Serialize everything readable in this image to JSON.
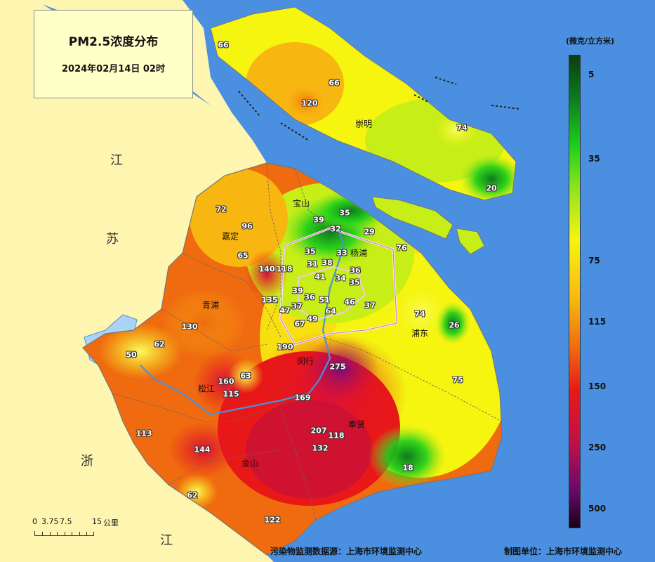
{
  "title": "PM2.5浓度分布",
  "subtitle": "2024年02月14日 02时",
  "legend": {
    "unit": "(微克/立方米)",
    "ticks": [
      "5",
      "35",
      "75",
      "115",
      "150",
      "250",
      "500"
    ]
  },
  "provinces": {
    "jiangsu_1": "江",
    "jiangsu_2": "苏",
    "zhejiang_1": "浙",
    "zhejiang_2": "江"
  },
  "districts": [
    "崇明",
    "宝山",
    "嘉定",
    "杨浦",
    "青浦",
    "浦东",
    "闵行",
    "松江",
    "奉贤",
    "金山"
  ],
  "stations": [
    "66",
    "66",
    "120",
    "74",
    "20",
    "72",
    "96",
    "65",
    "140",
    "118",
    "39",
    "35",
    "32",
    "29",
    "76",
    "35",
    "33",
    "31",
    "38",
    "41",
    "36",
    "34",
    "35",
    "39",
    "36",
    "51",
    "46",
    "37",
    "135",
    "47",
    "37",
    "64",
    "67",
    "49",
    "74",
    "26",
    "130",
    "62",
    "50",
    "190",
    "275",
    "63",
    "160",
    "115",
    "169",
    "75",
    "113",
    "207",
    "118",
    "132",
    "144",
    "18",
    "62",
    "122"
  ],
  "scale": {
    "labels": [
      "0",
      "3.75",
      "7.5",
      "15",
      "公里"
    ]
  },
  "footer": {
    "source": "污染物监测数据源：上海市环境监测中心",
    "maker": "制图单位：上海市环境监测中心"
  },
  "colors": {
    "water": "#4a8fe0",
    "land_outside": "#fdf5b0",
    "clean": "#1ccf1c",
    "moderate": "#f5f510",
    "polluted": "#e81818",
    "severe": "#6a0a6a"
  }
}
